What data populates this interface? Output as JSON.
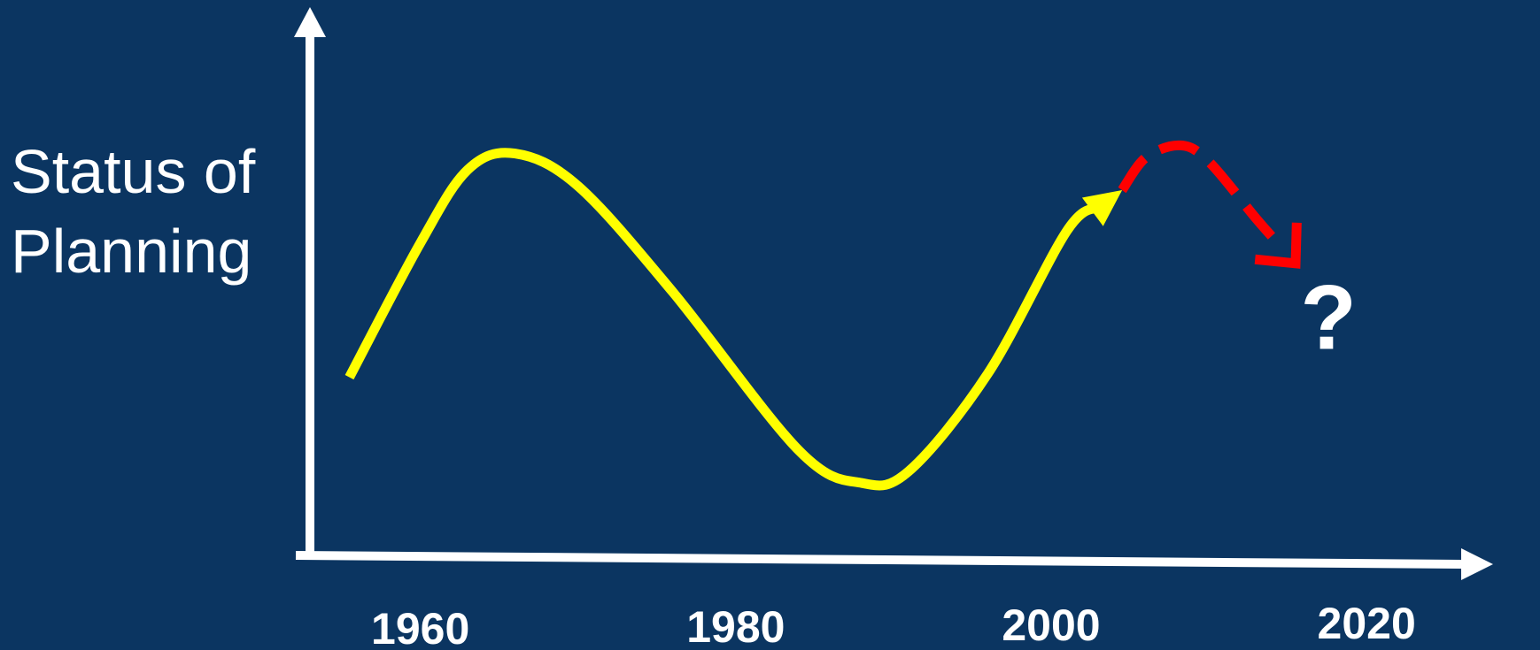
{
  "chart_data": {
    "type": "line",
    "ylabel_lines": [
      "Status of",
      "Planning"
    ],
    "xlabel": "",
    "x_ticks": [
      1960,
      1980,
      2000,
      2020
    ],
    "xlim": [
      1953,
      2026
    ],
    "ylim": [
      0,
      10
    ],
    "grid": false,
    "legend": "none",
    "series": [
      {
        "style": "solid",
        "color": "#ffff00",
        "arrow_end": true,
        "x": [
          1955.5,
          1960,
          1963,
          1966,
          1970,
          1976,
          1984,
          1988,
          1991,
          1996,
          2001,
          2004.5
        ],
        "y": [
          2.9,
          6.2,
          8.0,
          8.4,
          7.6,
          5.0,
          1.1,
          0.3,
          0.6,
          3.0,
          6.5,
          7.5
        ]
      },
      {
        "style": "dashed",
        "color": "#ff0000",
        "arrow_end": true,
        "x": [
          2004.5,
          2006,
          2008.2,
          2010,
          2013,
          2015.5
        ],
        "y": [
          7.5,
          8.3,
          8.6,
          8.2,
          6.8,
          5.7
        ]
      }
    ],
    "annotations": [
      {
        "text": "?",
        "x": 2015.8,
        "y": 3.6
      }
    ]
  }
}
